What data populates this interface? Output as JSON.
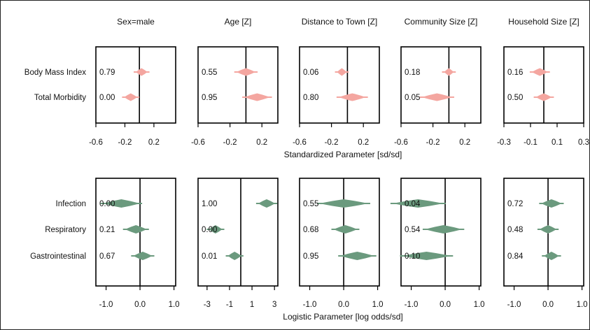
{
  "colors": {
    "top": "#f4a6a0",
    "bottom": "#6b9a7e",
    "axis": "#000000"
  },
  "chart_data": [
    {
      "type": "forest",
      "xlabel": "Standardized Parameter [sd/sd]",
      "rows": [
        "Body Mass Index",
        "Total Morbidity"
      ],
      "panels": [
        {
          "title": "Sex=male",
          "xlim": [
            -0.6,
            0.5
          ],
          "ticks": [
            -0.6,
            -0.2,
            0.2
          ],
          "tick_labels": [
            "-0.6",
            "-0.2",
            "0.2"
          ],
          "ref": 0.0,
          "items": [
            {
              "label": "0.79",
              "center": 0.03,
              "half": 0.08
            },
            {
              "label": "0.00",
              "center": -0.12,
              "half": 0.09
            }
          ]
        },
        {
          "title": "Age [Z]",
          "xlim": [
            -0.6,
            0.4
          ],
          "ticks": [
            -0.6,
            -0.2,
            0.2
          ],
          "tick_labels": [
            "-0.6",
            "-0.2",
            "0.2"
          ],
          "ref": 0.0,
          "items": [
            {
              "label": "0.55",
              "center": 0.0,
              "half": 0.12
            },
            {
              "label": "0.95",
              "center": 0.14,
              "half": 0.16
            }
          ]
        },
        {
          "title": "Distance to Town [Z]",
          "xlim": [
            -0.6,
            0.4
          ],
          "ticks": [
            -0.6,
            -0.2,
            0.2
          ],
          "tick_labels": [
            "-0.6",
            "-0.2",
            "0.2"
          ],
          "ref": 0.0,
          "items": [
            {
              "label": "0.06",
              "center": -0.07,
              "half": 0.06
            },
            {
              "label": "0.80",
              "center": 0.06,
              "half": 0.17
            }
          ]
        },
        {
          "title": "Community Size [Z]",
          "xlim": [
            -0.6,
            0.4
          ],
          "ticks": [
            -0.6,
            -0.2,
            0.2
          ],
          "tick_labels": [
            "-0.6",
            "-0.2",
            "0.2"
          ],
          "ref": 0.0,
          "items": [
            {
              "label": "0.18",
              "center": 0.0,
              "half": 0.06
            },
            {
              "label": "0.05",
              "center": -0.15,
              "half": 0.19
            }
          ]
        },
        {
          "title": "Household Size [Z]",
          "xlim": [
            -0.3,
            0.3
          ],
          "ticks": [
            -0.3,
            -0.1,
            0.1,
            0.3
          ],
          "tick_labels": [
            "-0.3",
            "-0.1",
            "0.1",
            "0.3"
          ],
          "ref": 0.0,
          "items": [
            {
              "label": "0.16",
              "center": -0.03,
              "half": 0.06
            },
            {
              "label": "0.50",
              "center": 0.0,
              "half": 0.06
            }
          ]
        }
      ]
    },
    {
      "type": "forest",
      "xlabel": "Logistic Parameter [log odds/sd]",
      "rows": [
        "Infection",
        "Respiratory",
        "Gastrointestinal"
      ],
      "panels": [
        {
          "title": "",
          "xlim": [
            -1.3,
            1.05
          ],
          "ticks": [
            -1.0,
            0.0,
            1.0
          ],
          "tick_labels": [
            "-1.0",
            "0.0",
            "1.0"
          ],
          "ref": 0.0,
          "items": [
            {
              "label": "0.00",
              "center": -0.55,
              "half": 0.55
            },
            {
              "label": "0.21",
              "center": -0.12,
              "half": 0.32
            },
            {
              "label": "0.67",
              "center": 0.08,
              "half": 0.28
            }
          ]
        },
        {
          "title": "",
          "xlim": [
            -3.8,
            3.3
          ],
          "ticks": [
            -3,
            -1,
            1,
            3
          ],
          "tick_labels": [
            "-3",
            "-1",
            "1",
            "3"
          ],
          "ref": 0.0,
          "items": [
            {
              "label": "1.00",
              "center": 2.3,
              "half": 0.75
            },
            {
              "label": "0.00",
              "center": -2.25,
              "half": 0.6
            },
            {
              "label": "0.01",
              "center": -0.55,
              "half": 0.6
            }
          ]
        },
        {
          "title": "",
          "xlim": [
            -1.3,
            1.05
          ],
          "ticks": [
            -1.0,
            0.0,
            1.0
          ],
          "tick_labels": [
            "-1.0",
            "0.0",
            "1.0"
          ],
          "ref": 0.0,
          "items": [
            {
              "label": "0.55",
              "center": 0.0,
              "half": 0.72
            },
            {
              "label": "0.68",
              "center": 0.05,
              "half": 0.35
            },
            {
              "label": "0.95",
              "center": 0.4,
              "half": 0.5
            }
          ]
        },
        {
          "title": "",
          "xlim": [
            -1.3,
            1.05
          ],
          "ticks": [
            -1.0,
            0.0,
            1.0
          ],
          "tick_labels": [
            "-1.0",
            "0.0",
            "1.0"
          ],
          "ref": 0.0,
          "items": [
            {
              "label": "0.04",
              "center": -0.8,
              "half": 0.75
            },
            {
              "label": "0.54",
              "center": -0.05,
              "half": 0.55
            },
            {
              "label": "0.10",
              "center": -0.55,
              "half": 0.72
            }
          ]
        },
        {
          "title": "",
          "xlim": [
            -1.3,
            1.05
          ],
          "ticks": [
            -1.0,
            0.0,
            1.0
          ],
          "tick_labels": [
            "-1.0",
            "0.0",
            "1.0"
          ],
          "ref": 0.0,
          "items": [
            {
              "label": "0.72",
              "center": 0.1,
              "half": 0.3
            },
            {
              "label": "0.48",
              "center": 0.0,
              "half": 0.25
            },
            {
              "label": "0.84",
              "center": 0.1,
              "half": 0.22
            }
          ]
        }
      ]
    }
  ]
}
